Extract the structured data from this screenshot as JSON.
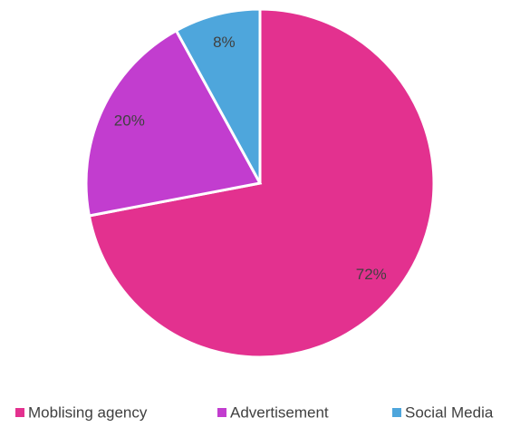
{
  "chart_data": {
    "type": "pie",
    "categories": [
      "Moblising agency",
      "Advertisement",
      "Social Media"
    ],
    "values": [
      72,
      20,
      8
    ],
    "value_labels": [
      "72%",
      "20%",
      "8%"
    ],
    "colors": [
      "#e3318f",
      "#c23dcf",
      "#4ea6dc"
    ],
    "legend": "bottom"
  }
}
